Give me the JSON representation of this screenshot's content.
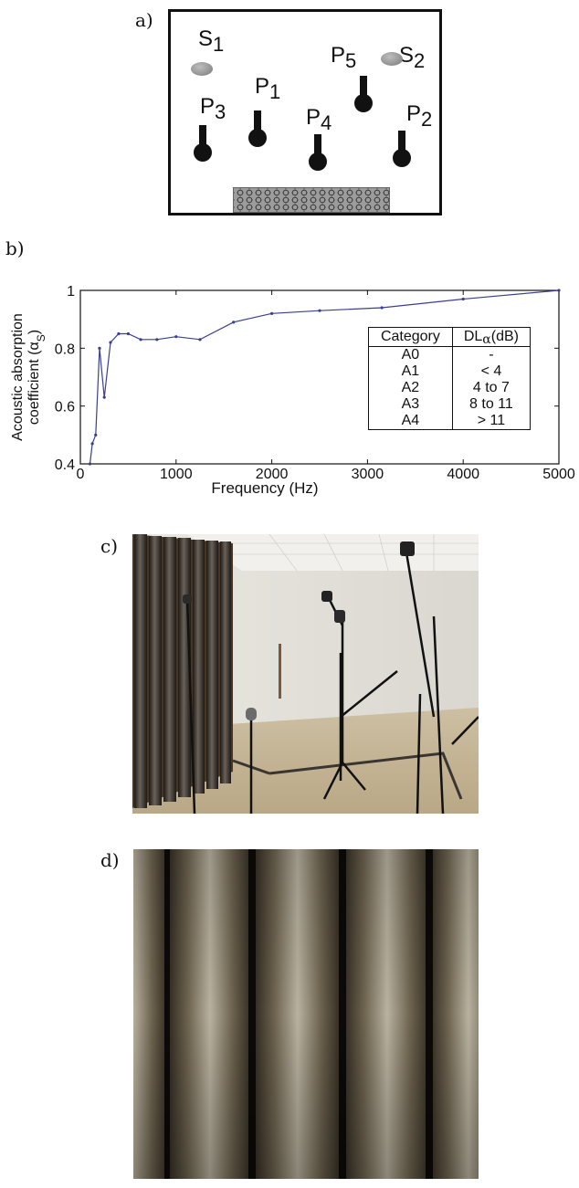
{
  "panel_labels": {
    "a": "a)",
    "b": "b)",
    "c": "c)",
    "d": "d)"
  },
  "diagram_a": {
    "sources": [
      {
        "label": "S",
        "sub": "1"
      },
      {
        "label": "S",
        "sub": "2"
      }
    ],
    "microphones": [
      {
        "label": "P",
        "sub": "1"
      },
      {
        "label": "P",
        "sub": "2"
      },
      {
        "label": "P",
        "sub": "3"
      },
      {
        "label": "P",
        "sub": "4"
      },
      {
        "label": "P",
        "sub": "5"
      }
    ]
  },
  "chart_data": {
    "type": "line",
    "title": "",
    "xlabel": "Frequency (Hz)",
    "ylabel_line1": "Acoustic absorption",
    "ylabel_line2": "coefficient (α",
    "ylabel_sub": "S",
    "ylabel_close": ")",
    "xlim": [
      0,
      5000
    ],
    "ylim": [
      0.4,
      1.0
    ],
    "xticks": [
      0,
      1000,
      2000,
      3000,
      4000,
      5000
    ],
    "yticks": [
      0.4,
      0.6,
      0.8,
      1.0
    ],
    "ytick_labels": [
      "0.4",
      "0.6",
      "0.8",
      "1"
    ],
    "grid": false,
    "line_color": "#3a3f8f",
    "series": [
      {
        "x": [
          100,
          125,
          160,
          200,
          250,
          315,
          400,
          500,
          630,
          800,
          1000,
          1250,
          1600,
          2000,
          2500,
          3150,
          4000,
          5000
        ],
        "values": [
          0.4,
          0.47,
          0.5,
          0.8,
          0.63,
          0.82,
          0.85,
          0.85,
          0.83,
          0.83,
          0.84,
          0.83,
          0.89,
          0.92,
          0.93,
          0.94,
          0.97,
          1.0
        ]
      }
    ],
    "table": {
      "headers": [
        "Category",
        "DL",
        "α",
        "(dB)"
      ],
      "rows": [
        [
          "A0",
          "-"
        ],
        [
          "A1",
          "< 4"
        ],
        [
          "A2",
          "4 to 7"
        ],
        [
          "A3",
          "8 to 11"
        ],
        [
          "A4",
          "> 11"
        ]
      ]
    }
  }
}
